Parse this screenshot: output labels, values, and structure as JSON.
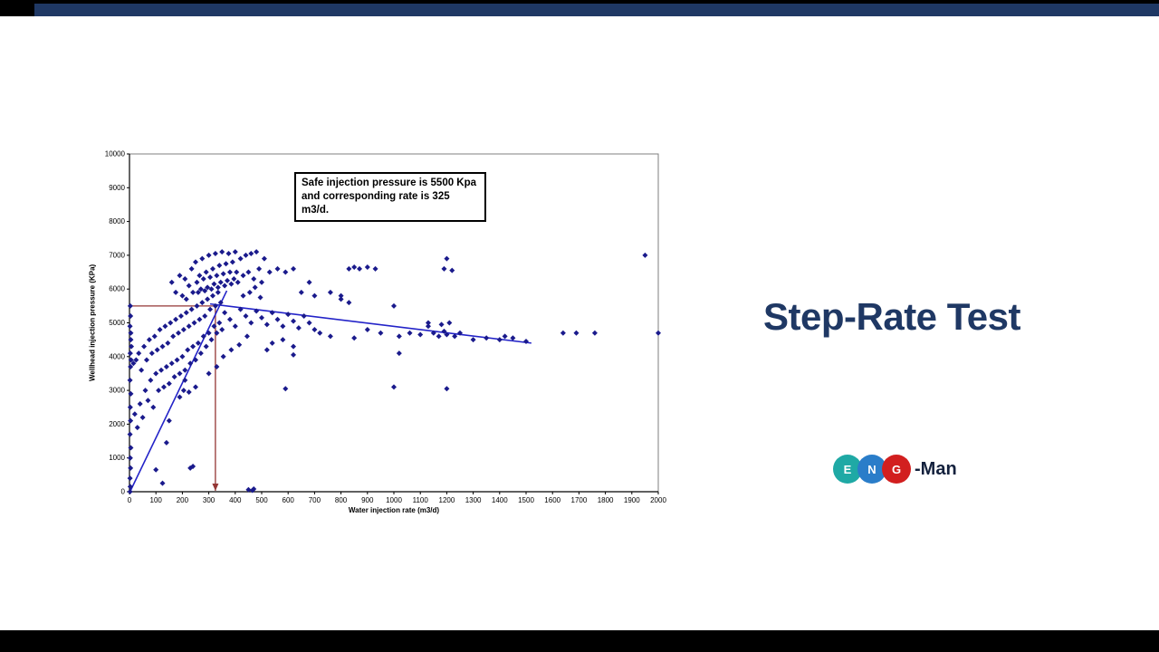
{
  "slide": {
    "title": "Step-Rate Test",
    "title_color": "#1F3864",
    "accent_bar_color": "#1F3864"
  },
  "logo": {
    "letters": [
      {
        "char": "E",
        "color": "#1FA9A5"
      },
      {
        "char": "N",
        "color": "#2A7DC9"
      },
      {
        "char": "G",
        "color": "#D21F1F"
      }
    ],
    "suffix": "-Man"
  },
  "chart_data": {
    "type": "scatter",
    "xlabel": "Water injection rate (m3/d)",
    "ylabel": "Wellhead injection pressure (KPa)",
    "xlim": [
      0,
      2000
    ],
    "xtick_step": 100,
    "ylim": [
      0,
      10000
    ],
    "ytick_step": 1000,
    "grid": false,
    "legend": "none",
    "marker": {
      "shape": "diamond",
      "color": "#1A1A8C",
      "size": 3
    },
    "annotation": {
      "text": "Safe injection pressure is 5500 Kpa and corresponding rate is 325 m3/d."
    },
    "reference": {
      "color": "#943634",
      "pressure": 5500,
      "rate": 325
    },
    "trendlines": [
      {
        "name": "rising-limb",
        "color": "#2323C8",
        "points": [
          [
            2,
            0
          ],
          [
            368,
            5950
          ]
        ]
      },
      {
        "name": "declining-limb",
        "color": "#2323C8",
        "points": [
          [
            305,
            5560
          ],
          [
            1520,
            4400
          ]
        ]
      }
    ],
    "points": [
      [
        2,
        0
      ],
      [
        3,
        150
      ],
      [
        2,
        400
      ],
      [
        4,
        700
      ],
      [
        3,
        1000
      ],
      [
        5,
        1300
      ],
      [
        2,
        1700
      ],
      [
        4,
        2100
      ],
      [
        3,
        2500
      ],
      [
        5,
        2900
      ],
      [
        2,
        3300
      ],
      [
        4,
        3700
      ],
      [
        3,
        4100
      ],
      [
        5,
        4500
      ],
      [
        2,
        4900
      ],
      [
        4,
        5200
      ],
      [
        3,
        5500
      ],
      [
        6,
        3900
      ],
      [
        7,
        4300
      ],
      [
        5,
        4700
      ],
      [
        15,
        3800
      ],
      [
        20,
        2300
      ],
      [
        25,
        3900
      ],
      [
        30,
        1900
      ],
      [
        35,
        4100
      ],
      [
        40,
        2600
      ],
      [
        45,
        3600
      ],
      [
        50,
        2200
      ],
      [
        55,
        4300
      ],
      [
        60,
        3000
      ],
      [
        65,
        3900
      ],
      [
        70,
        2700
      ],
      [
        75,
        4500
      ],
      [
        80,
        3300
      ],
      [
        85,
        4100
      ],
      [
        90,
        2500
      ],
      [
        95,
        4600
      ],
      [
        100,
        3500
      ],
      [
        105,
        4200
      ],
      [
        110,
        3000
      ],
      [
        115,
        4800
      ],
      [
        120,
        3600
      ],
      [
        125,
        4300
      ],
      [
        130,
        3100
      ],
      [
        135,
        4900
      ],
      [
        140,
        3700
      ],
      [
        145,
        4400
      ],
      [
        150,
        3200
      ],
      [
        155,
        5000
      ],
      [
        160,
        3800
      ],
      [
        165,
        4600
      ],
      [
        170,
        3400
      ],
      [
        175,
        5100
      ],
      [
        180,
        3900
      ],
      [
        185,
        4700
      ],
      [
        190,
        3500
      ],
      [
        195,
        5200
      ],
      [
        200,
        4000
      ],
      [
        205,
        4800
      ],
      [
        210,
        3600
      ],
      [
        215,
        5300
      ],
      [
        220,
        4200
      ],
      [
        225,
        4900
      ],
      [
        230,
        3800
      ],
      [
        235,
        5400
      ],
      [
        240,
        4300
      ],
      [
        245,
        5000
      ],
      [
        250,
        3900
      ],
      [
        255,
        5500
      ],
      [
        260,
        4400
      ],
      [
        265,
        5100
      ],
      [
        270,
        4100
      ],
      [
        275,
        5600
      ],
      [
        280,
        4600
      ],
      [
        285,
        5200
      ],
      [
        290,
        4300
      ],
      [
        295,
        5700
      ],
      [
        300,
        4700
      ],
      [
        305,
        5400
      ],
      [
        310,
        4500
      ],
      [
        315,
        5800
      ],
      [
        320,
        4900
      ],
      [
        325,
        5500
      ],
      [
        330,
        4700
      ],
      [
        335,
        5900
      ],
      [
        340,
        5000
      ],
      [
        345,
        5600
      ],
      [
        350,
        4800
      ],
      [
        205,
        3000
      ],
      [
        225,
        2950
      ],
      [
        250,
        3100
      ],
      [
        210,
        3300
      ],
      [
        190,
        2800
      ],
      [
        300,
        3500
      ],
      [
        330,
        3700
      ],
      [
        355,
        4000
      ],
      [
        385,
        4200
      ],
      [
        415,
        4350
      ],
      [
        445,
        4600
      ],
      [
        160,
        6200
      ],
      [
        175,
        5900
      ],
      [
        190,
        6400
      ],
      [
        200,
        5800
      ],
      [
        210,
        6300
      ],
      [
        215,
        5700
      ],
      [
        225,
        6100
      ],
      [
        235,
        6600
      ],
      [
        240,
        5900
      ],
      [
        250,
        6800
      ],
      [
        255,
        6200
      ],
      [
        260,
        5900
      ],
      [
        265,
        6400
      ],
      [
        270,
        6000
      ],
      [
        275,
        6900
      ],
      [
        280,
        6300
      ],
      [
        285,
        5950
      ],
      [
        290,
        6500
      ],
      [
        295,
        6050
      ],
      [
        300,
        7000
      ],
      [
        305,
        6350
      ],
      [
        310,
        6000
      ],
      [
        315,
        6600
      ],
      [
        320,
        6150
      ],
      [
        325,
        7050
      ],
      [
        330,
        6400
      ],
      [
        335,
        6050
      ],
      [
        340,
        6700
      ],
      [
        345,
        6200
      ],
      [
        350,
        7100
      ],
      [
        355,
        6450
      ],
      [
        360,
        6100
      ],
      [
        365,
        6750
      ],
      [
        370,
        6250
      ],
      [
        375,
        7050
      ],
      [
        380,
        6500
      ],
      [
        385,
        6150
      ],
      [
        390,
        6800
      ],
      [
        395,
        6300
      ],
      [
        400,
        7100
      ],
      [
        405,
        6500
      ],
      [
        410,
        6200
      ],
      [
        420,
        6900
      ],
      [
        430,
        6400
      ],
      [
        440,
        7000
      ],
      [
        450,
        6500
      ],
      [
        460,
        7050
      ],
      [
        470,
        6300
      ],
      [
        480,
        7100
      ],
      [
        490,
        6600
      ],
      [
        500,
        6200
      ],
      [
        510,
        6900
      ],
      [
        430,
        5800
      ],
      [
        455,
        5900
      ],
      [
        475,
        6050
      ],
      [
        495,
        5750
      ],
      [
        360,
        5300
      ],
      [
        380,
        5100
      ],
      [
        400,
        4900
      ],
      [
        420,
        5400
      ],
      [
        440,
        5200
      ],
      [
        460,
        5000
      ],
      [
        480,
        5350
      ],
      [
        500,
        5150
      ],
      [
        520,
        4950
      ],
      [
        540,
        5300
      ],
      [
        560,
        5100
      ],
      [
        580,
        4900
      ],
      [
        600,
        5250
      ],
      [
        620,
        5050
      ],
      [
        640,
        4850
      ],
      [
        660,
        5200
      ],
      [
        680,
        5000
      ],
      [
        700,
        4800
      ],
      [
        540,
        4400
      ],
      [
        580,
        4500
      ],
      [
        620,
        4300
      ],
      [
        520,
        4200
      ],
      [
        530,
        6500
      ],
      [
        560,
        6600
      ],
      [
        590,
        6500
      ],
      [
        620,
        6600
      ],
      [
        650,
        5900
      ],
      [
        700,
        5800
      ],
      [
        760,
        5900
      ],
      [
        800,
        5800
      ],
      [
        830,
        6600
      ],
      [
        850,
        6650
      ],
      [
        870,
        6600
      ],
      [
        900,
        6650
      ],
      [
        930,
        6600
      ],
      [
        680,
        6200
      ],
      [
        720,
        4700
      ],
      [
        760,
        4600
      ],
      [
        800,
        5700
      ],
      [
        830,
        5600
      ],
      [
        850,
        4550
      ],
      [
        900,
        4800
      ],
      [
        950,
        4700
      ],
      [
        1000,
        5500
      ],
      [
        1020,
        4600
      ],
      [
        1060,
        4700
      ],
      [
        1100,
        4650
      ],
      [
        1130,
        4900
      ],
      [
        1150,
        4700
      ],
      [
        1170,
        4600
      ],
      [
        1190,
        4750
      ],
      [
        1200,
        4650
      ],
      [
        1210,
        5000
      ],
      [
        1230,
        4600
      ],
      [
        1250,
        4700
      ],
      [
        1300,
        4500
      ],
      [
        1350,
        4550
      ],
      [
        1400,
        4500
      ],
      [
        1420,
        4600
      ],
      [
        1450,
        4550
      ],
      [
        1500,
        4450
      ],
      [
        100,
        650
      ],
      [
        125,
        250
      ],
      [
        140,
        1450
      ],
      [
        150,
        2100
      ],
      [
        230,
        700
      ],
      [
        240,
        750
      ],
      [
        450,
        60
      ],
      [
        465,
        40
      ],
      [
        470,
        80
      ],
      [
        1000,
        3100
      ],
      [
        1200,
        3050
      ],
      [
        590,
        3050
      ],
      [
        620,
        4050
      ],
      [
        1020,
        4100
      ],
      [
        1200,
        6900
      ],
      [
        1190,
        6600
      ],
      [
        1220,
        6550
      ],
      [
        1640,
        4700
      ],
      [
        1690,
        4700
      ],
      [
        1760,
        4700
      ],
      [
        1950,
        7000
      ],
      [
        2000,
        4700
      ],
      [
        1130,
        5000
      ],
      [
        1180,
        4950
      ]
    ]
  }
}
